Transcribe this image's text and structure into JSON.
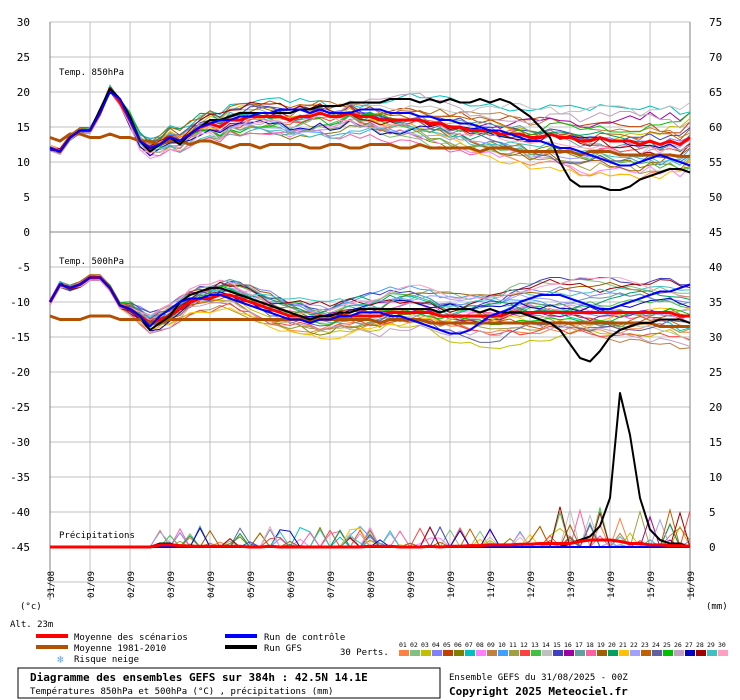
{
  "chart_data": {
    "type": "line",
    "panel_labels": {
      "t850": "Temp. 850hPa",
      "t500": "Temp. 500hPa",
      "precip": "Précipitations"
    },
    "left_axis_ticks": [
      30,
      25,
      20,
      15,
      10,
      5,
      0,
      -5,
      -10,
      -15,
      -20,
      -25,
      -30,
      -35,
      -40,
      -45
    ],
    "right_axis_ticks": [
      75,
      70,
      65,
      60,
      55,
      50,
      45,
      40,
      35,
      30,
      25,
      20,
      15,
      10,
      5,
      0
    ],
    "left_unit": "(°c)",
    "right_unit": "(mm)",
    "altitude": "Alt. 23m",
    "x_ticks": [
      "31/08",
      "01/09",
      "02/09",
      "03/09",
      "04/09",
      "05/09",
      "06/09",
      "07/09",
      "08/09",
      "09/09",
      "10/09",
      "11/09",
      "12/09",
      "13/09",
      "14/09",
      "15/09",
      "16/09"
    ],
    "grid": true,
    "legend": {
      "mean": "Moyenne des scénarios",
      "clim": "Moyenne 1981-2010",
      "snow": "Risque neige",
      "control": "Run de contrôle",
      "gfs": "Run GFS",
      "perts_label": "30 Perts.",
      "perts": [
        "01",
        "02",
        "03",
        "04",
        "05",
        "06",
        "07",
        "08",
        "09",
        "10",
        "11",
        "12",
        "13",
        "14",
        "15",
        "16",
        "17",
        "18",
        "19",
        "20",
        "21",
        "22",
        "23",
        "24",
        "25",
        "26",
        "27",
        "28",
        "29",
        "30"
      ],
      "pert_colors": [
        "#ff8040",
        "#80c080",
        "#c0c000",
        "#8080ff",
        "#c04000",
        "#808000",
        "#00c0c0",
        "#ff80ff",
        "#c08040",
        "#40a0ff",
        "#a0a040",
        "#ff4040",
        "#40c040",
        "#c0c0c0",
        "#4040c0",
        "#a000a0",
        "#60a0a0",
        "#ff60a0",
        "#a06000",
        "#00a060",
        "#ffc000",
        "#a0a0ff",
        "#c06000",
        "#6060a0",
        "#00c000",
        "#c0a0c0",
        "#0000c0",
        "#a00000",
        "#40c0c0",
        "#ffa0c0"
      ]
    },
    "footer": {
      "title": "Diagramme des ensembles GEFS sur 384h : 42.5N 14.1E",
      "subtitle": "Températures 850hPa et 500hPa (°C) , précipitations (mm)",
      "run": "Ensemble GEFS du 31/08/2025 - 00Z",
      "copyright": "Copyright 2025 Meteociel.fr"
    },
    "series": [
      {
        "name": "Moyenne des scénarios",
        "panel": "t850",
        "color": "#ff0000",
        "values": [
          12,
          11.5,
          13.5,
          14.5,
          14.5,
          17,
          20.5,
          18.5,
          16,
          13,
          12,
          12.5,
          13.5,
          13,
          14,
          15,
          15.5,
          15,
          16,
          16,
          16.5,
          16.5,
          16.5,
          16.5,
          16,
          16.5,
          16.5,
          17,
          16.5,
          16.5,
          17,
          16.5,
          16.5,
          16,
          16,
          16,
          16,
          16,
          15.5,
          15.5,
          15,
          15,
          14.5,
          14.5,
          14.5,
          14,
          14,
          14,
          13.5,
          13.5,
          14,
          13.5,
          13.5,
          13,
          13,
          13.5,
          13,
          13,
          13,
          12.5,
          13,
          12.5,
          13,
          12.5,
          13.5
        ]
      },
      {
        "name": "Moyenne 1981-2010",
        "panel": "t850",
        "color": "#b05000",
        "values": [
          13.5,
          13,
          14,
          14,
          13.5,
          13.5,
          14,
          13.5,
          13.5,
          13,
          13,
          12.5,
          13,
          13,
          12.5,
          13,
          13,
          12.5,
          12,
          12.5,
          12.5,
          12,
          12.5,
          12.5,
          12.5,
          12.5,
          12,
          12,
          12.5,
          12.5,
          12,
          12,
          12.5,
          12.5,
          12.5,
          12,
          12,
          12.5,
          12,
          12,
          12,
          12,
          12,
          11.5,
          12,
          12,
          12,
          11.5,
          11.5,
          11.5,
          11.5,
          11.5,
          11.5,
          11,
          11.5,
          11.5,
          11.5,
          11,
          11,
          11,
          11,
          11,
          11,
          10.8,
          10.8
        ]
      },
      {
        "name": "Run GFS",
        "panel": "t850",
        "color": "#000000",
        "values": [
          12,
          11.5,
          13.5,
          14.5,
          14.5,
          17.5,
          20.5,
          19,
          16.5,
          13,
          11.5,
          12.5,
          13.5,
          12.5,
          14,
          15,
          16,
          16,
          16.5,
          17,
          17,
          17,
          17,
          17,
          17,
          17.5,
          17.5,
          18,
          18,
          18,
          18.5,
          18.5,
          18.5,
          18.5,
          19,
          19,
          19,
          18.5,
          19,
          18.5,
          19,
          18.5,
          18.5,
          19,
          18.5,
          19,
          18.5,
          17.5,
          16.5,
          15,
          13.5,
          10,
          7.5,
          6.5,
          6.5,
          6.5,
          6,
          6,
          6.5,
          7.5,
          8,
          8.5,
          9,
          9,
          8.5
        ]
      },
      {
        "name": "Run de contrôle",
        "panel": "t850",
        "color": "#0000ff",
        "values": [
          12,
          11.5,
          13.5,
          14.5,
          14.5,
          17,
          20,
          19,
          16,
          13,
          12,
          12.5,
          13.5,
          13,
          14,
          15,
          15.5,
          16,
          16,
          16.5,
          16.5,
          17,
          17,
          17.5,
          17.5,
          17.5,
          17,
          17.5,
          17,
          17,
          17,
          17.5,
          17.5,
          17.5,
          17,
          17,
          17,
          16.5,
          16.5,
          16,
          16,
          15.5,
          15.5,
          15,
          14.5,
          14.5,
          14,
          13.5,
          13,
          13,
          12.5,
          12,
          12,
          11.5,
          11,
          10.5,
          10,
          9.5,
          9.5,
          10,
          10.5,
          11,
          10.5,
          10,
          9.5
        ]
      },
      {
        "name": "Moyenne des scénarios",
        "panel": "t500",
        "color": "#ff0000",
        "values": [
          -10,
          -7.5,
          -8,
          -7.5,
          -6.5,
          -6.5,
          -8,
          -10.5,
          -11,
          -12,
          -13,
          -12.5,
          -12,
          -11,
          -10,
          -9.5,
          -9.5,
          -9,
          -9,
          -9.5,
          -10,
          -10.5,
          -11,
          -11.5,
          -12,
          -12,
          -12.5,
          -12.5,
          -12.5,
          -12,
          -12,
          -12,
          -12,
          -12,
          -11.5,
          -11.5,
          -11.5,
          -11.5,
          -11.5,
          -12,
          -12,
          -12,
          -12,
          -12,
          -12,
          -12,
          -11.5,
          -11.5,
          -11.5,
          -11.5,
          -11.5,
          -11.5,
          -11.5,
          -11.5,
          -11.5,
          -11.5,
          -11.5,
          -11.5,
          -11.5,
          -11.5,
          -11.5,
          -11.5,
          -11.5,
          -12,
          -12
        ]
      },
      {
        "name": "Moyenne 1981-2010",
        "panel": "t500",
        "color": "#b05000",
        "values": [
          -12,
          -12.5,
          -12.5,
          -12.5,
          -12,
          -12,
          -12,
          -12.5,
          -12.5,
          -12.5,
          -13,
          -13,
          -12.5,
          -12.5,
          -12.5,
          -12.5,
          -12.5,
          -12.5,
          -12.5,
          -12.5,
          -12.5,
          -12.5,
          -12.5,
          -12.5,
          -12.5,
          -12.5,
          -12.5,
          -12.5,
          -12.5,
          -12.5,
          -12.5,
          -12.5,
          -12.5,
          -13,
          -12.5,
          -12.5,
          -12.5,
          -12.5,
          -13,
          -13,
          -13,
          -13,
          -13,
          -13,
          -13,
          -13,
          -13,
          -13,
          -13,
          -13,
          -13,
          -13,
          -13,
          -13,
          -13,
          -13,
          -13,
          -13,
          -13,
          -13,
          -13,
          -13.5,
          -13.5,
          -13.5,
          -13.5
        ]
      },
      {
        "name": "Run GFS",
        "panel": "t500",
        "color": "#000000",
        "values": [
          -10,
          -7.5,
          -8,
          -7.5,
          -6.5,
          -6.5,
          -8,
          -10.5,
          -11,
          -12,
          -14,
          -13,
          -12,
          -10,
          -9,
          -8.5,
          -8,
          -8,
          -8.5,
          -9,
          -9.5,
          -10,
          -10.5,
          -11,
          -11.5,
          -12,
          -12.5,
          -12,
          -12,
          -11.5,
          -11.5,
          -11,
          -11,
          -11,
          -11,
          -11,
          -11,
          -11,
          -11,
          -11.5,
          -11,
          -11,
          -11,
          -11.5,
          -11,
          -11.5,
          -11.5,
          -11.5,
          -12,
          -12.5,
          -13,
          -14,
          -16,
          -18,
          -18.5,
          -17,
          -15,
          -14,
          -13.5,
          -13,
          -13,
          -12.5,
          -12.5,
          -12.5,
          -13
        ]
      },
      {
        "name": "Run de contrôle",
        "panel": "t500",
        "color": "#0000ff",
        "values": [
          -10,
          -7.5,
          -8,
          -7.5,
          -6.5,
          -6.5,
          -8,
          -10.5,
          -11,
          -12,
          -13.5,
          -12,
          -11,
          -10,
          -9.5,
          -9.5,
          -9,
          -9,
          -9.5,
          -10,
          -10.5,
          -11,
          -11.5,
          -12,
          -12.5,
          -12.5,
          -13,
          -12.5,
          -12.5,
          -12,
          -12,
          -11.5,
          -11.5,
          -11.5,
          -12,
          -12,
          -12.5,
          -13,
          -13.5,
          -14,
          -14.5,
          -14.5,
          -14,
          -13,
          -12,
          -11.5,
          -11,
          -10,
          -9.5,
          -9,
          -9,
          -9,
          -9.5,
          -10,
          -10.5,
          -11,
          -11,
          -10.5,
          -10,
          -9.5,
          -9,
          -8.5,
          -8.5,
          -8,
          -7.5
        ]
      },
      {
        "name": "Run GFS",
        "panel": "precip",
        "color": "#000000",
        "values": [
          0,
          0,
          0,
          0,
          0,
          0,
          0,
          0,
          0,
          0,
          0,
          0.5,
          0.5,
          0,
          0,
          0,
          0,
          0,
          0,
          0,
          0,
          0,
          0,
          0,
          0,
          0,
          0,
          0,
          0,
          0,
          0,
          0,
          0,
          0,
          0,
          0,
          0,
          0,
          0,
          0,
          0,
          0,
          0,
          0,
          0,
          0,
          0,
          0,
          0,
          0,
          0,
          0,
          0.5,
          1,
          1.5,
          3,
          7,
          22,
          16,
          7,
          2.5,
          1,
          0.5,
          0.5,
          0
        ]
      },
      {
        "name": "Run de contrôle",
        "panel": "precip",
        "color": "#0000ff",
        "values": [
          0,
          0,
          0,
          0,
          0,
          0,
          0,
          0,
          0,
          0,
          0,
          0,
          0,
          0,
          0,
          0,
          0,
          0,
          0,
          0,
          0,
          0,
          0,
          0,
          0,
          0,
          0,
          0,
          0,
          0,
          0,
          0,
          0,
          0,
          0,
          0,
          0,
          0,
          0,
          0,
          0,
          0,
          0,
          0,
          0,
          0,
          0,
          0,
          0,
          0,
          0,
          0,
          0,
          0,
          0,
          0,
          0,
          0,
          0,
          0,
          0,
          0,
          0,
          0,
          0
        ]
      },
      {
        "name": "Moyenne des scénarios",
        "panel": "precip",
        "color": "#ff0000",
        "values": [
          0,
          0,
          0,
          0,
          0,
          0,
          0,
          0,
          0,
          0,
          0,
          0.3,
          0.3,
          0.2,
          0.1,
          0.1,
          0.1,
          0.1,
          0.1,
          0.1,
          0,
          0,
          0.1,
          0,
          0,
          0,
          0,
          0,
          0,
          0,
          0,
          0,
          0.1,
          0.1,
          0.1,
          0,
          0,
          0,
          0.1,
          0,
          0.1,
          0.1,
          0.2,
          0.2,
          0.3,
          0.3,
          0.3,
          0.4,
          0.4,
          0.5,
          0.5,
          0.5,
          0.5,
          0.8,
          1,
          1,
          1,
          0.8,
          0.5,
          0.5,
          0.3,
          0.3,
          0.2,
          0.2,
          0.1
        ]
      }
    ]
  }
}
